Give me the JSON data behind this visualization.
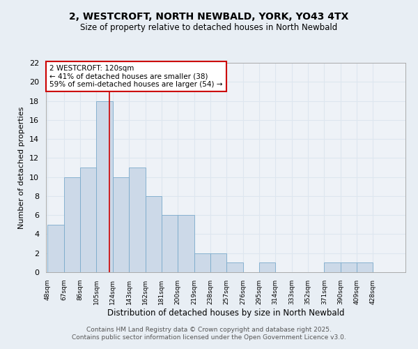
{
  "title1": "2, WESTCROFT, NORTH NEWBALD, YORK, YO43 4TX",
  "title2": "Size of property relative to detached houses in North Newbald",
  "xlabel": "Distribution of detached houses by size in North Newbald",
  "ylabel": "Number of detached properties",
  "bin_labels": [
    "48sqm",
    "67sqm",
    "86sqm",
    "105sqm",
    "124sqm",
    "143sqm",
    "162sqm",
    "181sqm",
    "200sqm",
    "219sqm",
    "238sqm",
    "257sqm",
    "276sqm",
    "295sqm",
    "314sqm",
    "333sqm",
    "352sqm",
    "371sqm",
    "390sqm",
    "409sqm",
    "428sqm"
  ],
  "bin_edges": [
    48,
    67,
    86,
    105,
    124,
    143,
    162,
    181,
    200,
    219,
    238,
    257,
    276,
    295,
    314,
    333,
    352,
    371,
    390,
    409,
    428,
    447
  ],
  "values": [
    5,
    10,
    11,
    18,
    10,
    11,
    8,
    6,
    6,
    2,
    2,
    1,
    0,
    1,
    0,
    0,
    0,
    1,
    1,
    1,
    0
  ],
  "bar_color": "#ccd9e8",
  "bar_edge_color": "#7aaacb",
  "grid_color": "#dde6ef",
  "red_line_x": 120,
  "annotation_text": "2 WESTCROFT: 120sqm\n← 41% of detached houses are smaller (38)\n59% of semi-detached houses are larger (54) →",
  "annotation_box_color": "#ffffff",
  "annotation_border_color": "#cc0000",
  "ylim": [
    0,
    22
  ],
  "yticks": [
    0,
    2,
    4,
    6,
    8,
    10,
    12,
    14,
    16,
    18,
    20,
    22
  ],
  "footer": "Contains HM Land Registry data © Crown copyright and database right 2025.\nContains public sector information licensed under the Open Government Licence v3.0.",
  "bg_color": "#e8eef4",
  "plot_bg_color": "#eef2f7"
}
